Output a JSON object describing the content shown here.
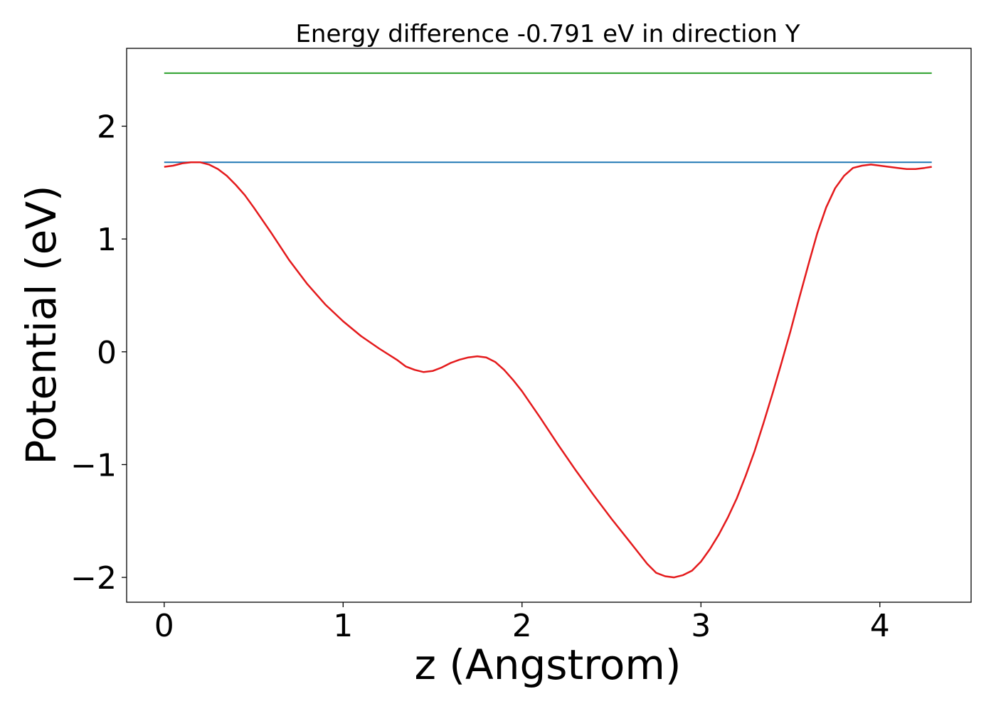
{
  "chart_data": {
    "type": "line",
    "title": "Energy difference -0.791 eV in direction Y",
    "xlabel": "z (Angstrom)",
    "ylabel": "Potential (eV)",
    "xlim": [
      -0.21,
      4.51
    ],
    "ylim": [
      -2.22,
      2.69
    ],
    "x_ticks": [
      0,
      1,
      2,
      3,
      4
    ],
    "x_tick_labels": [
      "0",
      "1",
      "2",
      "3",
      "4"
    ],
    "y_ticks": [
      -2,
      -1,
      0,
      1,
      2
    ],
    "y_tick_labels": [
      "−2",
      "−1",
      "0",
      "1",
      "2"
    ],
    "grid": false,
    "series": [
      {
        "color": "#2ca02c",
        "x": [
          0,
          4.29
        ],
        "y": [
          2.47,
          2.47
        ]
      },
      {
        "color": "#1f77b4",
        "x": [
          0,
          4.29
        ],
        "y": [
          1.68,
          1.68
        ]
      },
      {
        "color": "#e41a1c",
        "x": [
          0,
          0.05,
          0.1,
          0.15,
          0.2,
          0.25,
          0.3,
          0.35,
          0.4,
          0.45,
          0.5,
          0.6,
          0.7,
          0.8,
          0.9,
          1.0,
          1.1,
          1.2,
          1.3,
          1.35,
          1.4,
          1.45,
          1.5,
          1.55,
          1.6,
          1.65,
          1.7,
          1.75,
          1.8,
          1.85,
          1.9,
          1.95,
          2.0,
          2.1,
          2.2,
          2.3,
          2.4,
          2.5,
          2.6,
          2.7,
          2.75,
          2.8,
          2.85,
          2.9,
          2.95,
          3.0,
          3.05,
          3.1,
          3.15,
          3.2,
          3.25,
          3.3,
          3.35,
          3.4,
          3.45,
          3.5,
          3.55,
          3.6,
          3.65,
          3.7,
          3.75,
          3.8,
          3.85,
          3.9,
          3.95,
          4.0,
          4.05,
          4.1,
          4.15,
          4.2,
          4.25,
          4.29
        ],
        "y": [
          1.64,
          1.65,
          1.67,
          1.68,
          1.68,
          1.66,
          1.62,
          1.56,
          1.48,
          1.39,
          1.28,
          1.05,
          0.81,
          0.6,
          0.42,
          0.27,
          0.14,
          0.03,
          -0.07,
          -0.13,
          -0.16,
          -0.18,
          -0.17,
          -0.14,
          -0.1,
          -0.07,
          -0.05,
          -0.04,
          -0.05,
          -0.09,
          -0.16,
          -0.25,
          -0.35,
          -0.58,
          -0.82,
          -1.05,
          -1.27,
          -1.48,
          -1.68,
          -1.88,
          -1.96,
          -1.99,
          -2.0,
          -1.98,
          -1.94,
          -1.86,
          -1.75,
          -1.62,
          -1.47,
          -1.3,
          -1.1,
          -0.88,
          -0.63,
          -0.37,
          -0.1,
          0.18,
          0.48,
          0.77,
          1.05,
          1.28,
          1.45,
          1.56,
          1.63,
          1.65,
          1.66,
          1.65,
          1.64,
          1.63,
          1.62,
          1.62,
          1.63,
          1.64
        ]
      }
    ]
  }
}
